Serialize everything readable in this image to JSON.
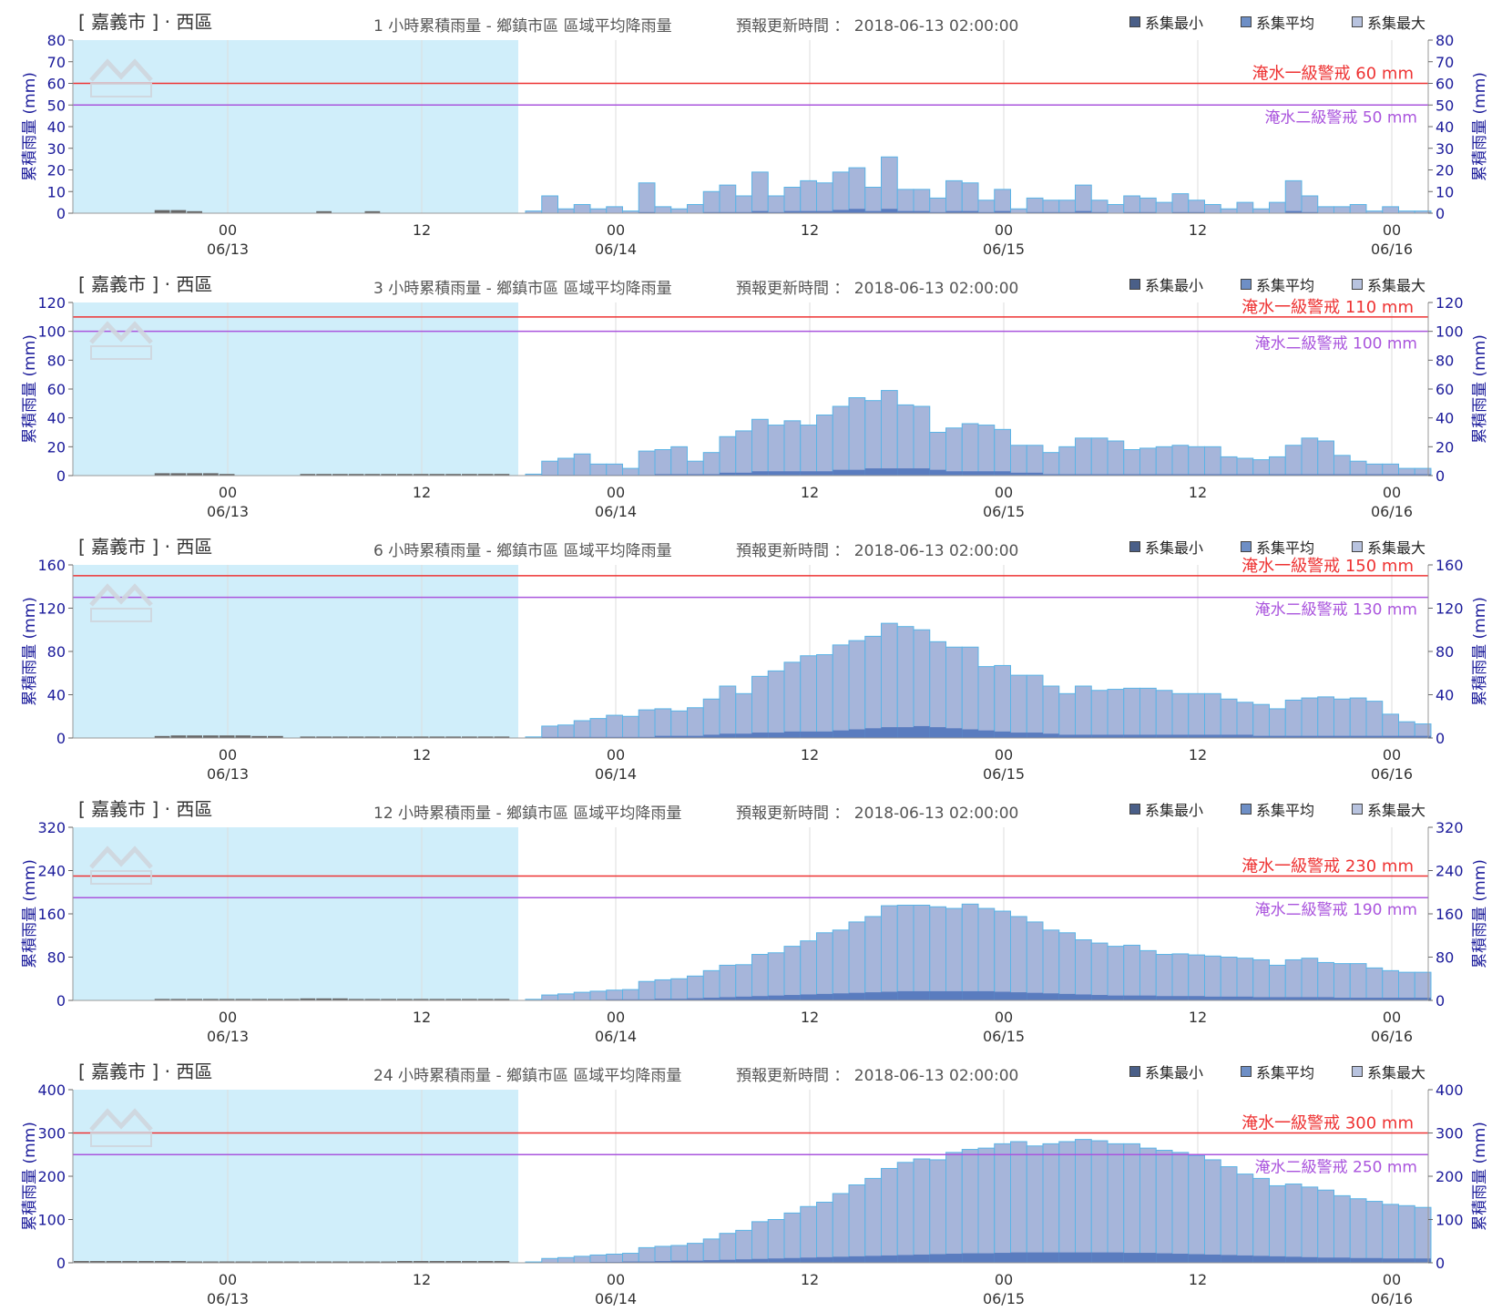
{
  "legend": [
    {
      "label": "系集最小",
      "color": "#4a5f88"
    },
    {
      "label": "系集平均",
      "color": "#6e8fc6"
    },
    {
      "label": "系集最大",
      "color": "#b8c3df"
    }
  ],
  "colors": {
    "bar_fill": "#a6b5da",
    "bar_edge": "#5ab4e6",
    "min_fill": "#5a7cbf",
    "past_fill": "#666666",
    "shade": "#d0eefa",
    "warn1": "#ee3333",
    "warn2": "#aa55dd",
    "axis_text": "#1a1a9a",
    "grid": "#dddddd"
  },
  "chart_data": [
    {
      "type": "bar",
      "location": "[ 嘉義市 ] · 西區",
      "title": "1 小時累積雨量 - 鄉鎮市區 區域平均降雨量",
      "update": "預報更新時間 ： 2018-06-13 02:00:00",
      "ylabel": "累積雨量 (mm)",
      "ylim": [
        0,
        80
      ],
      "yticks": [
        0,
        10,
        20,
        30,
        40,
        50,
        60,
        70,
        80
      ],
      "warn1": {
        "label": "淹水一級警戒 60 mm",
        "value": 60
      },
      "warn2": {
        "label": "淹水二級警戒 50 mm",
        "value": 50
      },
      "x_ticks": [
        {
          "top": "00",
          "bottom": "06/13"
        },
        {
          "top": "12",
          "bottom": ""
        },
        {
          "top": "00",
          "bottom": "06/14"
        },
        {
          "top": "12",
          "bottom": ""
        },
        {
          "top": "00",
          "bottom": "06/15"
        },
        {
          "top": "12",
          "bottom": ""
        },
        {
          "top": "00",
          "bottom": "06/16"
        }
      ],
      "past": [
        0,
        0,
        0,
        0,
        0,
        1,
        1,
        0.5,
        0,
        0,
        0,
        0,
        0,
        0,
        0,
        0.5,
        0,
        0,
        0.5,
        0,
        0,
        0,
        0,
        0,
        0,
        0,
        0
      ],
      "max": [
        1,
        8,
        2,
        4,
        2,
        3,
        1,
        14,
        3,
        2,
        4,
        10,
        13,
        8,
        19,
        8,
        12,
        15,
        14,
        19,
        21,
        12,
        26,
        11,
        11,
        7,
        15,
        14,
        6,
        11,
        2,
        7,
        6,
        6,
        13,
        6,
        4,
        8,
        7,
        5,
        9,
        6,
        4,
        2,
        5,
        2,
        5,
        15,
        8,
        3,
        3,
        4,
        1,
        3,
        1,
        1
      ],
      "min": [
        0,
        0,
        0,
        0,
        0,
        0,
        0,
        0.5,
        0,
        0,
        0,
        0.5,
        0.5,
        0.5,
        1,
        0.5,
        1,
        1,
        1,
        1.5,
        2,
        1,
        2,
        1,
        1,
        0.5,
        1,
        1,
        0.5,
        1,
        0,
        0.5,
        0.5,
        0.5,
        1,
        0.5,
        0,
        0.5,
        0.5,
        0,
        0.5,
        0.5,
        0,
        0,
        0,
        0,
        0,
        1,
        0.5,
        0,
        0,
        0,
        0,
        0,
        0,
        0
      ]
    },
    {
      "type": "bar",
      "location": "[ 嘉義市 ] · 西區",
      "title": "3 小時累積雨量 - 鄉鎮市區 區域平均降雨量",
      "update": "預報更新時間 ： 2018-06-13 02:00:00",
      "ylabel": "累積雨量 (mm)",
      "ylim": [
        0,
        120
      ],
      "yticks": [
        0,
        20,
        40,
        60,
        80,
        100,
        120
      ],
      "warn1": {
        "label": "淹水一級警戒 110 mm",
        "value": 110
      },
      "warn2": {
        "label": "淹水二級警戒 100 mm",
        "value": 100
      },
      "x_ticks": [
        {
          "top": "00",
          "bottom": "06/13"
        },
        {
          "top": "12",
          "bottom": ""
        },
        {
          "top": "00",
          "bottom": "06/14"
        },
        {
          "top": "12",
          "bottom": ""
        },
        {
          "top": "00",
          "bottom": "06/15"
        },
        {
          "top": "12",
          "bottom": ""
        },
        {
          "top": "00",
          "bottom": "06/16"
        }
      ],
      "past": [
        0,
        0,
        0,
        0,
        0,
        1,
        1,
        1,
        1,
        0.5,
        0,
        0,
        0,
        0,
        0.5,
        0.5,
        0.5,
        0.5,
        0.5,
        0.5,
        0.5,
        0.5,
        0.5,
        0.5,
        0.5,
        0.5,
        0.5
      ],
      "max": [
        1,
        10,
        12,
        15,
        8,
        8,
        5,
        17,
        18,
        20,
        10,
        16,
        27,
        31,
        39,
        35,
        38,
        35,
        42,
        48,
        54,
        52,
        59,
        49,
        48,
        30,
        33,
        36,
        35,
        32,
        21,
        21,
        16,
        20,
        26,
        26,
        24,
        18,
        19,
        20,
        21,
        20,
        20,
        13,
        12,
        11,
        13,
        21,
        26,
        24,
        14,
        10,
        8,
        8,
        5,
        5
      ],
      "min": [
        0,
        0.5,
        0.5,
        0.5,
        0.5,
        0.5,
        0.5,
        0.5,
        1,
        1,
        1,
        1,
        2,
        2,
        3,
        3,
        3,
        3,
        3,
        4,
        4,
        5,
        5,
        5,
        5,
        4,
        3,
        3,
        3,
        3,
        2,
        2,
        1,
        1,
        1,
        1,
        1,
        1,
        1,
        1,
        1,
        1,
        1,
        1,
        1,
        1,
        1,
        1,
        1,
        1,
        1,
        1,
        1,
        1,
        1,
        1
      ]
    },
    {
      "type": "bar",
      "location": "[ 嘉義市 ] · 西區",
      "title": "6 小時累積雨量 - 鄉鎮市區 區域平均降雨量",
      "update": "預報更新時間 ： 2018-06-13 02:00:00",
      "ylabel": "累積雨量 (mm)",
      "ylim": [
        0,
        160
      ],
      "yticks": [
        0,
        40,
        80,
        120,
        160
      ],
      "warn1": {
        "label": "淹水一級警戒 150 mm",
        "value": 150
      },
      "warn2": {
        "label": "淹水二級警戒 130 mm",
        "value": 130
      },
      "x_ticks": [
        {
          "top": "00",
          "bottom": "06/13"
        },
        {
          "top": "12",
          "bottom": ""
        },
        {
          "top": "00",
          "bottom": "06/14"
        },
        {
          "top": "12",
          "bottom": ""
        },
        {
          "top": "00",
          "bottom": "06/15"
        },
        {
          "top": "12",
          "bottom": ""
        },
        {
          "top": "00",
          "bottom": "06/16"
        }
      ],
      "past": [
        0,
        0,
        0,
        0,
        0,
        1,
        1.5,
        1.5,
        1.5,
        1.5,
        1.5,
        1,
        1,
        0,
        0.5,
        0.5,
        0.5,
        0.5,
        0.5,
        0.5,
        0.5,
        0.5,
        0.5,
        0.5,
        0.5,
        0.5,
        0.5
      ],
      "max": [
        1,
        11,
        12,
        16,
        18,
        21,
        20,
        26,
        27,
        25,
        28,
        36,
        48,
        41,
        57,
        62,
        70,
        76,
        77,
        86,
        90,
        94,
        106,
        103,
        100,
        89,
        84,
        84,
        66,
        67,
        58,
        58,
        48,
        41,
        48,
        44,
        45,
        46,
        46,
        44,
        41,
        41,
        41,
        36,
        33,
        31,
        27,
        35,
        37,
        38,
        36,
        37,
        34,
        22,
        15,
        13
      ],
      "min": [
        0,
        1,
        1,
        1,
        1,
        1,
        1,
        1,
        2,
        2,
        2,
        3,
        4,
        4,
        5,
        5,
        6,
        6,
        6,
        7,
        8,
        9,
        10,
        10,
        11,
        10,
        9,
        8,
        7,
        6,
        5,
        5,
        4,
        3,
        3,
        3,
        3,
        3,
        3,
        3,
        3,
        3,
        3,
        3,
        3,
        2,
        2,
        2,
        2,
        2,
        2,
        2,
        2,
        2,
        2,
        2
      ]
    },
    {
      "type": "bar",
      "location": "[ 嘉義市 ] · 西區",
      "title": "12 小時累積雨量 - 鄉鎮市區 區域平均降雨量",
      "update": "預報更新時間 ： 2018-06-13 02:00:00",
      "ylabel": "累積雨量 (mm)",
      "ylim": [
        0,
        320
      ],
      "yticks": [
        0,
        80,
        160,
        240,
        320
      ],
      "warn1": {
        "label": "淹水一級警戒 230 mm",
        "value": 230
      },
      "warn2": {
        "label": "淹水二級警戒 190 mm",
        "value": 190
      },
      "x_ticks": [
        {
          "top": "00",
          "bottom": "06/13"
        },
        {
          "top": "12",
          "bottom": ""
        },
        {
          "top": "00",
          "bottom": "06/14"
        },
        {
          "top": "12",
          "bottom": ""
        },
        {
          "top": "00",
          "bottom": "06/15"
        },
        {
          "top": "12",
          "bottom": ""
        },
        {
          "top": "00",
          "bottom": "06/16"
        }
      ],
      "past": [
        0,
        0,
        0,
        0,
        0,
        1,
        1,
        1,
        1,
        1,
        1,
        1,
        1,
        1,
        2,
        2,
        2,
        1,
        1,
        1,
        1,
        1,
        1,
        1,
        1,
        1,
        1
      ],
      "max": [
        2,
        10,
        12,
        15,
        17,
        19,
        20,
        35,
        38,
        40,
        45,
        55,
        65,
        66,
        85,
        88,
        100,
        110,
        125,
        130,
        145,
        155,
        175,
        176,
        176,
        173,
        170,
        178,
        170,
        165,
        155,
        145,
        130,
        125,
        112,
        106,
        100,
        102,
        92,
        85,
        86,
        84,
        82,
        80,
        78,
        75,
        65,
        75,
        78,
        70,
        68,
        68,
        60,
        55,
        52,
        52
      ],
      "min": [
        0,
        1,
        1,
        1,
        1,
        2,
        2,
        2,
        3,
        3,
        4,
        5,
        6,
        7,
        8,
        9,
        10,
        11,
        12,
        13,
        14,
        15,
        16,
        17,
        17,
        17,
        17,
        17,
        17,
        16,
        15,
        14,
        13,
        12,
        11,
        10,
        9,
        9,
        9,
        8,
        8,
        8,
        7,
        7,
        7,
        6,
        6,
        6,
        6,
        6,
        5,
        5,
        5,
        5,
        5,
        5
      ]
    },
    {
      "type": "bar",
      "location": "[ 嘉義市 ] · 西區",
      "title": "24 小時累積雨量 - 鄉鎮市區 區域平均降雨量",
      "update": "預報更新時間 ： 2018-06-13 02:00:00",
      "ylabel": "累積雨量 (mm)",
      "ylim": [
        0,
        400
      ],
      "yticks": [
        0,
        100,
        200,
        300,
        400
      ],
      "warn1": {
        "label": "淹水一級警戒 300 mm",
        "value": 300
      },
      "warn2": {
        "label": "淹水二級警戒 250 mm",
        "value": 250
      },
      "x_ticks": [
        {
          "top": "00",
          "bottom": "06/13"
        },
        {
          "top": "12",
          "bottom": ""
        },
        {
          "top": "00",
          "bottom": "06/14"
        },
        {
          "top": "12",
          "bottom": ""
        },
        {
          "top": "00",
          "bottom": "06/15"
        },
        {
          "top": "12",
          "bottom": ""
        },
        {
          "top": "00",
          "bottom": "06/16"
        }
      ],
      "past": [
        2,
        2,
        2,
        2,
        2,
        2,
        2,
        1,
        1,
        1,
        1,
        1,
        1,
        1,
        1,
        1,
        1,
        1,
        1,
        1,
        2,
        2,
        2,
        2,
        2,
        2,
        2
      ],
      "max": [
        2,
        10,
        12,
        15,
        18,
        20,
        22,
        35,
        38,
        40,
        45,
        55,
        68,
        75,
        95,
        100,
        115,
        130,
        140,
        160,
        180,
        195,
        218,
        232,
        240,
        238,
        255,
        262,
        265,
        275,
        280,
        270,
        275,
        280,
        285,
        282,
        275,
        275,
        265,
        260,
        255,
        248,
        238,
        222,
        205,
        195,
        178,
        182,
        175,
        168,
        155,
        148,
        142,
        135,
        132,
        128
      ],
      "min": [
        0,
        1,
        1,
        1,
        2,
        2,
        3,
        3,
        4,
        5,
        5,
        6,
        7,
        8,
        9,
        10,
        11,
        12,
        13,
        14,
        15,
        16,
        17,
        18,
        19,
        20,
        21,
        22,
        22,
        23,
        24,
        24,
        24,
        24,
        24,
        24,
        24,
        23,
        23,
        22,
        21,
        20,
        19,
        18,
        17,
        16,
        15,
        14,
        13,
        12,
        12,
        11,
        11,
        10,
        10,
        10
      ]
    }
  ]
}
